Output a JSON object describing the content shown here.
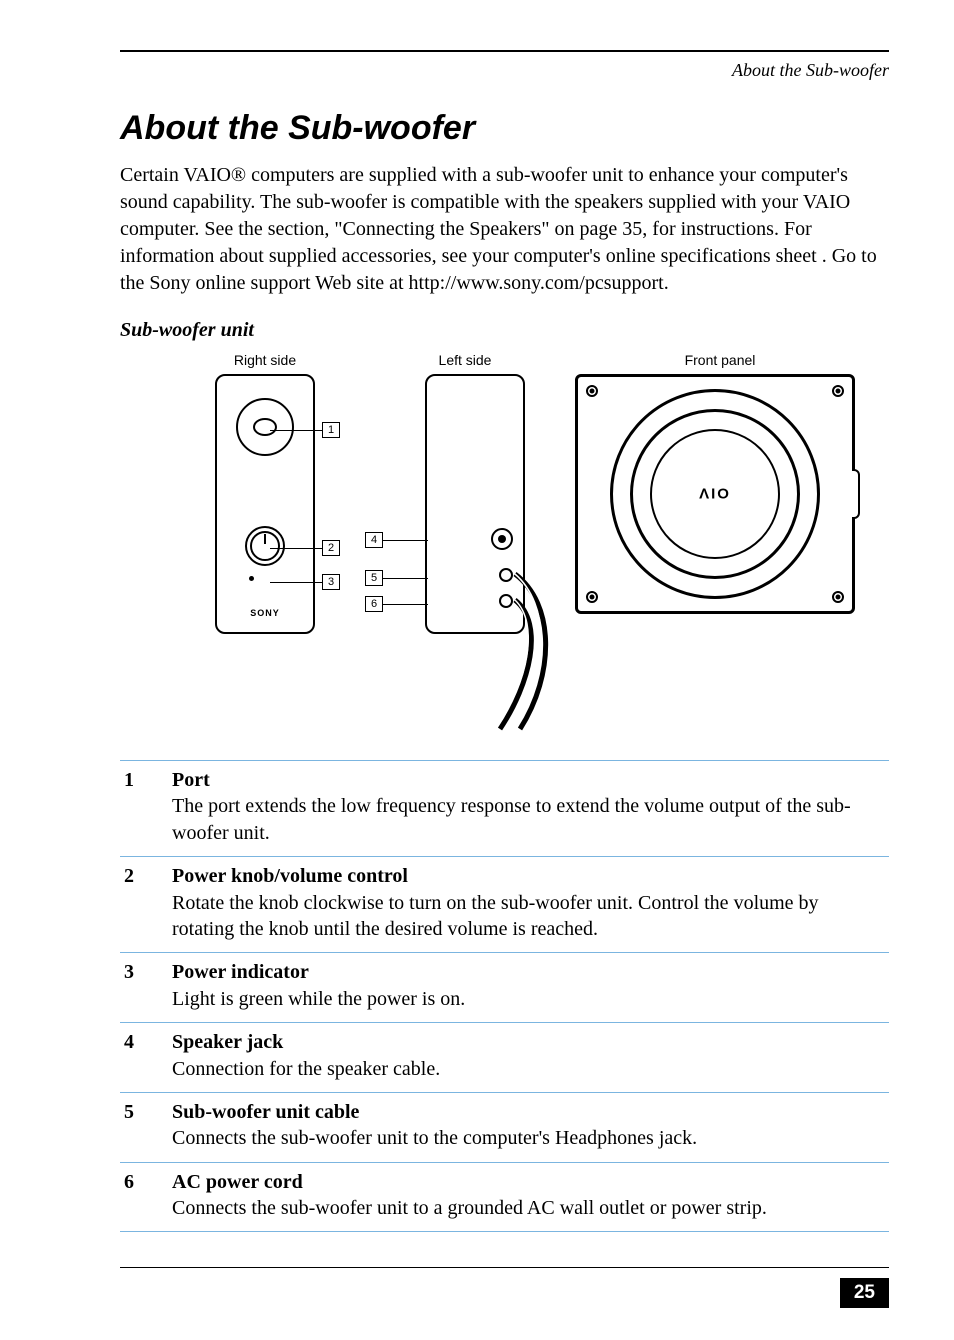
{
  "breadcrumb": "About the Sub-woofer",
  "title": "About the Sub-woofer",
  "intro": "Certain VAIO® computers are supplied with a sub-woofer unit to enhance your computer's sound capability. The sub-woofer is compatible with the speakers supplied with your VAIO computer. See the section, \"Connecting the Speakers\" on page 35, for instructions. For information about supplied accessories, see your computer's online specifications sheet . Go to the Sony online support Web site at http://www.sony.com/pcsupport.",
  "figure": {
    "caption": "Sub-woofer unit",
    "panels": {
      "right": "Right side",
      "left": "Left side",
      "front": "Front panel"
    },
    "brand_small": "SONY",
    "brand_front": "ΛIO",
    "callouts": [
      "1",
      "2",
      "3",
      "4",
      "5",
      "6"
    ]
  },
  "defs": [
    {
      "n": "1",
      "term": "Port",
      "body": "The port extends the low frequency response to extend the volume output of the sub-woofer unit."
    },
    {
      "n": "2",
      "term": "Power knob/volume control",
      "body": "Rotate the knob clockwise to turn on the sub-woofer unit. Control the volume by rotating the knob until the desired volume is reached."
    },
    {
      "n": "3",
      "term": "Power indicator",
      "body": "Light is green while the power is on."
    },
    {
      "n": "4",
      "term": "Speaker jack",
      "body": "Connection for the speaker cable."
    },
    {
      "n": "5",
      "term": "Sub-woofer unit cable",
      "body": "Connects the sub-woofer unit to the computer's Headphones jack."
    },
    {
      "n": "6",
      "term": "AC power cord",
      "body": "Connects the sub-woofer unit to a grounded AC wall outlet or power strip."
    }
  ],
  "page_number": "25",
  "colors": {
    "rule_blue": "#7bb5e0",
    "text": "#000000",
    "bg": "#ffffff"
  }
}
